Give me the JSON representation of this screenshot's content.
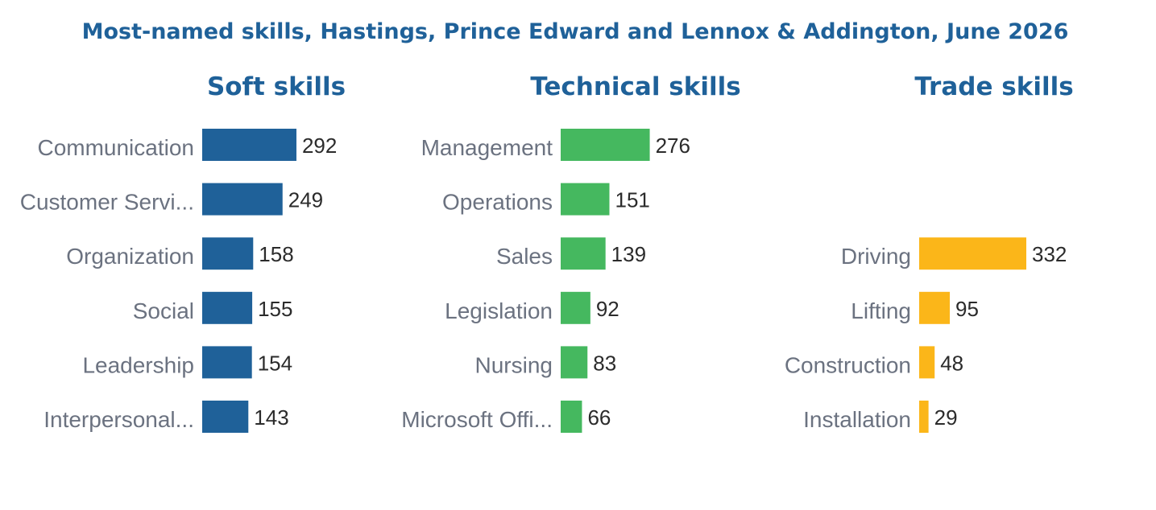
{
  "title": "Most-named skills, Hastings, Prince Edward and Lennox & Addington, June 2026",
  "colors": {
    "title": "#1f6199",
    "soft": "#1f6199",
    "technical": "#45b85f",
    "trade": "#fbb619",
    "category_label": "#6b7280",
    "value_label": "#2b2b2b"
  },
  "chart_data": [
    {
      "type": "bar",
      "orientation": "horizontal",
      "title": "Soft skills",
      "categories": [
        "Communication",
        "Customer Servi...",
        "Organization",
        "Social",
        "Leadership",
        "Interpersonal..."
      ],
      "values": [
        292,
        249,
        158,
        155,
        154,
        143
      ],
      "color": "#1f6199"
    },
    {
      "type": "bar",
      "orientation": "horizontal",
      "title": "Technical skills",
      "categories": [
        "Management",
        "Operations",
        "Sales",
        "Legislation",
        "Nursing",
        "Microsoft Offi..."
      ],
      "values": [
        276,
        151,
        139,
        92,
        83,
        66
      ],
      "color": "#45b85f"
    },
    {
      "type": "bar",
      "orientation": "horizontal",
      "title": "Trade skills",
      "categories": [
        "Driving",
        "Lifting",
        "Construction",
        "Installation"
      ],
      "values": [
        332,
        95,
        48,
        29
      ],
      "color": "#fbb619"
    }
  ]
}
